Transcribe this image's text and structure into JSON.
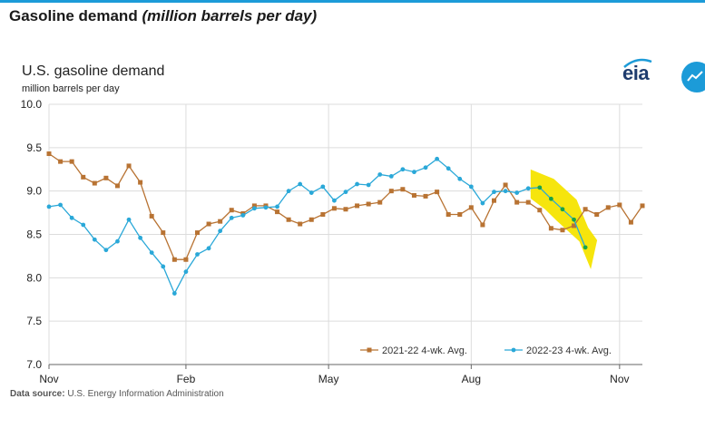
{
  "page": {
    "heading": "Gasoline demand",
    "heading_sub": "(million barrels per day)",
    "source_lead": "Data source:",
    "source_text": "U.S. Energy Information Administration"
  },
  "logo": {
    "text": "eia"
  },
  "icons": {
    "logo": "eia-logo-icon",
    "chart_button": "line-chart-icon"
  },
  "colors": {
    "top_rule": "#1c9bd8",
    "series_2021": "#b87333",
    "series_2022": "#2aa8d8",
    "highlight": "#f5e400"
  },
  "chart_data": {
    "type": "line",
    "title": "U.S. gasoline demand",
    "ylabel": "million barrels per day",
    "xlabel": "",
    "ylim": [
      7.0,
      10.0
    ],
    "yticks": [
      "10.0",
      "9.5",
      "9.0",
      "8.5",
      "8.0",
      "7.5",
      "7.0"
    ],
    "xtick_labels": [
      "Nov",
      "Feb",
      "May",
      "Aug",
      "Nov"
    ],
    "x_domain_weeks": 52,
    "xtick_weeks": [
      0,
      12,
      24.5,
      37,
      50
    ],
    "grid": true,
    "legend_position": "bottom-right",
    "highlight": "yellow band over the most recent 2022-23 weeks",
    "series": [
      {
        "name": "2021-22  4-wk. Avg.",
        "color": "#b87333",
        "marker": "square",
        "values": [
          9.43,
          9.34,
          9.34,
          9.16,
          9.09,
          9.15,
          9.06,
          9.29,
          9.1,
          8.71,
          8.52,
          8.21,
          8.21,
          8.52,
          8.62,
          8.65,
          8.78,
          8.74,
          8.83,
          8.83,
          8.76,
          8.67,
          8.62,
          8.67,
          8.73,
          8.8,
          8.79,
          8.83,
          8.85,
          8.87,
          9.0,
          9.02,
          8.95,
          8.94,
          8.99,
          8.73,
          8.73,
          8.81,
          8.61,
          8.89,
          9.07,
          8.87,
          8.87,
          8.78,
          8.57,
          8.55,
          8.6,
          8.79,
          8.73,
          8.81,
          8.84,
          8.64,
          8.83
        ]
      },
      {
        "name": "2022-23  4-wk. Avg.",
        "color": "#2aa8d8",
        "marker": "circle",
        "values": [
          8.82,
          8.84,
          8.69,
          8.61,
          8.44,
          8.32,
          8.42,
          8.67,
          8.46,
          8.29,
          8.13,
          7.82,
          8.07,
          8.27,
          8.34,
          8.54,
          8.69,
          8.72,
          8.8,
          8.81,
          8.82,
          9.0,
          9.08,
          8.98,
          9.05,
          8.89,
          8.99,
          9.08,
          9.07,
          9.19,
          9.17,
          9.25,
          9.22,
          9.27,
          9.37,
          9.26,
          9.14,
          9.05,
          8.86,
          8.99,
          9.0,
          8.98,
          9.03,
          9.04,
          8.91,
          8.79,
          8.67,
          8.35
        ]
      }
    ]
  }
}
